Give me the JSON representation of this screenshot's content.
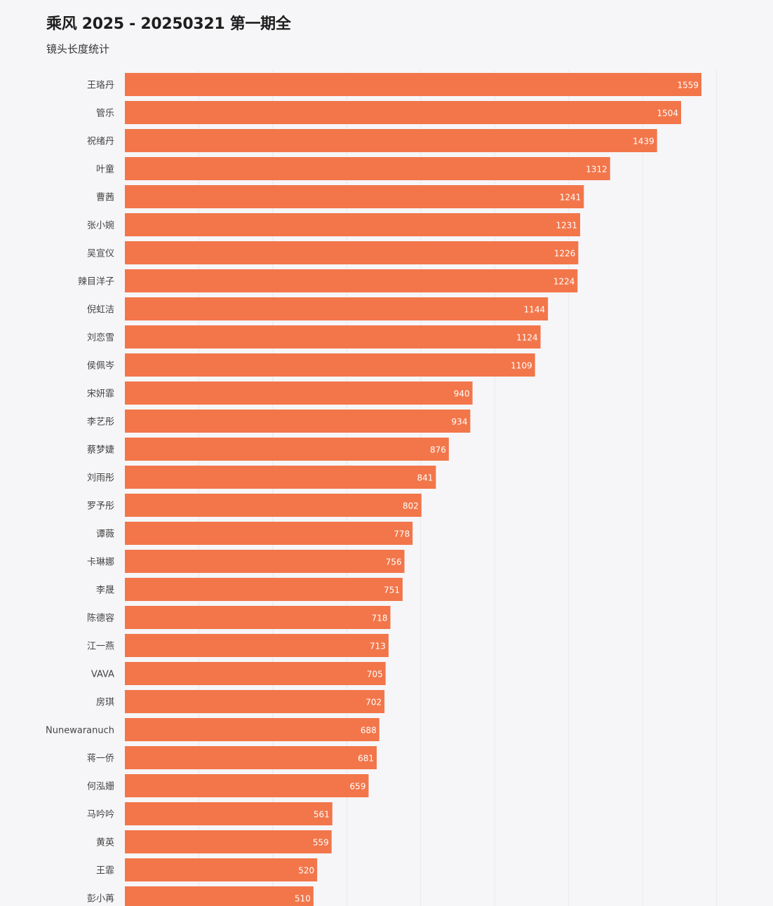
{
  "chart_data": {
    "type": "bar",
    "orientation": "horizontal",
    "title": "乘风 2025 - 20250321 第一期全",
    "subtitle": "镜头长度统计",
    "categories": [
      "王珞丹",
      "管乐",
      "祝绪丹",
      "叶童",
      "曹茜",
      "张小婉",
      "吴宣仪",
      "辣目洋子",
      "倪虹洁",
      "刘恋雪",
      "侯佩岑",
      "宋妍霏",
      "李艺彤",
      "蔡梦婕",
      "刘雨彤",
      "罗予彤",
      "谭薇",
      "卡琳娜",
      "李晟",
      "陈德容",
      "江一燕",
      "VAVA",
      "房琪",
      "Nunewaranuch",
      "蒋一侨",
      "何泓姗",
      "马吟吟",
      "黄英",
      "王霏",
      "彭小苒"
    ],
    "values": [
      1559,
      1504,
      1439,
      1312,
      1241,
      1231,
      1226,
      1224,
      1144,
      1124,
      1109,
      940,
      934,
      876,
      841,
      802,
      778,
      756,
      751,
      718,
      713,
      705,
      702,
      688,
      681,
      659,
      561,
      559,
      520,
      510
    ],
    "bar_color": "#f2764a",
    "xlim": [
      0,
      1700
    ],
    "grid": true,
    "legend": "none"
  }
}
